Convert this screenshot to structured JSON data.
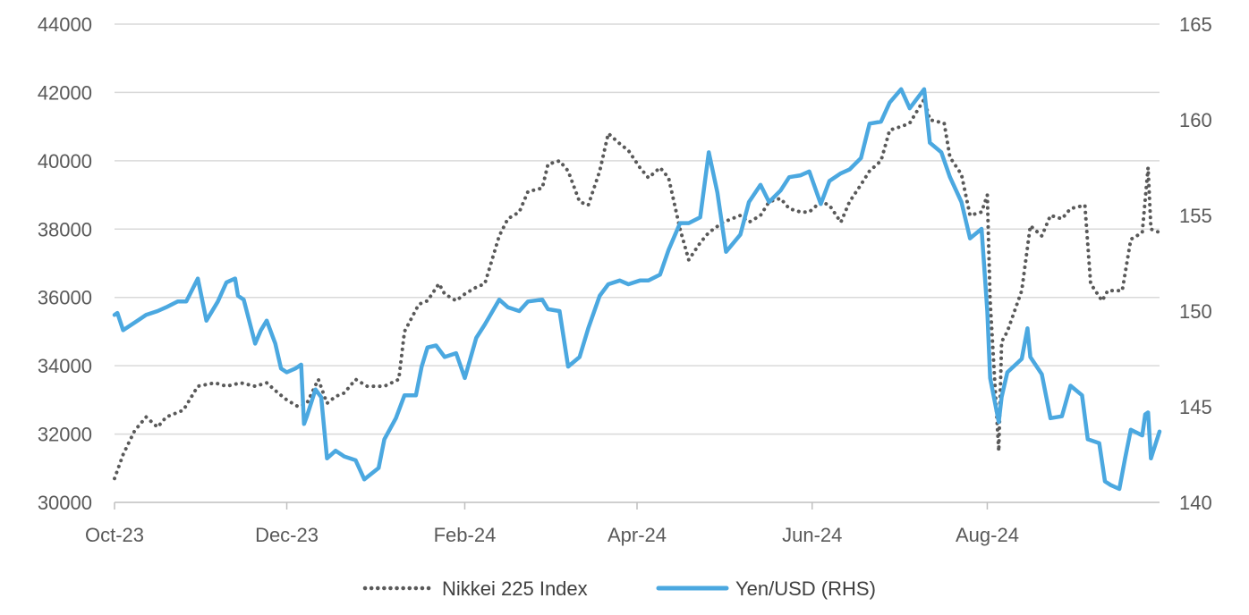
{
  "chart_data": {
    "type": "line",
    "title": "",
    "x_tick_labels": [
      "Oct-23",
      "Dec-23",
      "Feb-24",
      "Apr-24",
      "Jun-24",
      "Aug-24"
    ],
    "x_tick_dates": [
      "2023-10-02",
      "2023-12-01",
      "2024-02-01",
      "2024-04-01",
      "2024-06-01",
      "2024-08-01"
    ],
    "x_range": [
      "2023-10-02",
      "2024-09-30"
    ],
    "y_left": {
      "ticks": [
        30000,
        32000,
        34000,
        36000,
        38000,
        40000,
        42000,
        44000
      ],
      "range": [
        30000,
        44000
      ]
    },
    "y_right": {
      "ticks": [
        140,
        145,
        150,
        155,
        160,
        165
      ],
      "range": [
        140,
        165
      ]
    },
    "grid": true,
    "legend_position": "bottom",
    "series": [
      {
        "name": "Nikkei 225 Index",
        "axis": "left",
        "style": "dotted",
        "color": "#595959",
        "points": [
          [
            "2023-10-02",
            30700
          ],
          [
            "2023-10-05",
            31400
          ],
          [
            "2023-10-09",
            32100
          ],
          [
            "2023-10-13",
            32500
          ],
          [
            "2023-10-17",
            32200
          ],
          [
            "2023-10-20",
            32500
          ],
          [
            "2023-10-26",
            32700
          ],
          [
            "2023-10-31",
            33400
          ],
          [
            "2023-11-06",
            33500
          ],
          [
            "2023-11-10",
            33400
          ],
          [
            "2023-11-15",
            33500
          ],
          [
            "2023-11-20",
            33400
          ],
          [
            "2023-11-24",
            33500
          ],
          [
            "2023-11-28",
            33200
          ],
          [
            "2023-12-01",
            33000
          ],
          [
            "2023-12-05",
            32800
          ],
          [
            "2023-12-08",
            32900
          ],
          [
            "2023-12-12",
            33600
          ],
          [
            "2023-12-15",
            32900
          ],
          [
            "2023-12-18",
            33100
          ],
          [
            "2023-12-21",
            33200
          ],
          [
            "2023-12-25",
            33600
          ],
          [
            "2023-12-29",
            33400
          ],
          [
            "2024-01-04",
            33400
          ],
          [
            "2024-01-09",
            33600
          ],
          [
            "2024-01-11",
            35000
          ],
          [
            "2024-01-16",
            35800
          ],
          [
            "2024-01-19",
            35900
          ],
          [
            "2024-01-23",
            36400
          ],
          [
            "2024-01-25",
            36100
          ],
          [
            "2024-01-29",
            35900
          ],
          [
            "2024-02-01",
            36100
          ],
          [
            "2024-02-05",
            36300
          ],
          [
            "2024-02-08",
            36400
          ],
          [
            "2024-02-13",
            37800
          ],
          [
            "2024-02-16",
            38300
          ],
          [
            "2024-02-20",
            38500
          ],
          [
            "2024-02-23",
            39100
          ],
          [
            "2024-02-28",
            39200
          ],
          [
            "2024-03-01",
            39900
          ],
          [
            "2024-03-05",
            40000
          ],
          [
            "2024-03-08",
            39700
          ],
          [
            "2024-03-12",
            38800
          ],
          [
            "2024-03-15",
            38700
          ],
          [
            "2024-03-19",
            39700
          ],
          [
            "2024-03-22",
            40800
          ],
          [
            "2024-03-26",
            40500
          ],
          [
            "2024-03-29",
            40300
          ],
          [
            "2024-04-02",
            39800
          ],
          [
            "2024-04-05",
            39500
          ],
          [
            "2024-04-09",
            39800
          ],
          [
            "2024-04-12",
            39500
          ],
          [
            "2024-04-16",
            38000
          ],
          [
            "2024-04-19",
            37100
          ],
          [
            "2024-04-23",
            37600
          ],
          [
            "2024-04-26",
            37900
          ],
          [
            "2024-05-01",
            38200
          ],
          [
            "2024-05-07",
            38400
          ],
          [
            "2024-05-10",
            38200
          ],
          [
            "2024-05-14",
            38400
          ],
          [
            "2024-05-17",
            38800
          ],
          [
            "2024-05-21",
            38900
          ],
          [
            "2024-05-24",
            38600
          ],
          [
            "2024-05-28",
            38500
          ],
          [
            "2024-05-31",
            38500
          ],
          [
            "2024-06-04",
            38800
          ],
          [
            "2024-06-07",
            38700
          ],
          [
            "2024-06-11",
            38200
          ],
          [
            "2024-06-14",
            38800
          ],
          [
            "2024-06-18",
            39300
          ],
          [
            "2024-06-21",
            39700
          ],
          [
            "2024-06-25",
            40000
          ],
          [
            "2024-06-28",
            40900
          ],
          [
            "2024-07-02",
            41000
          ],
          [
            "2024-07-05",
            41100
          ],
          [
            "2024-07-10",
            41800
          ],
          [
            "2024-07-12",
            41200
          ],
          [
            "2024-07-17",
            41100
          ],
          [
            "2024-07-19",
            40100
          ],
          [
            "2024-07-23",
            39600
          ],
          [
            "2024-07-26",
            38400
          ],
          [
            "2024-07-30",
            38500
          ],
          [
            "2024-08-01",
            39000
          ],
          [
            "2024-08-02",
            35900
          ],
          [
            "2024-08-05",
            31500
          ],
          [
            "2024-08-06",
            34700
          ],
          [
            "2024-08-08",
            35000
          ],
          [
            "2024-08-13",
            36200
          ],
          [
            "2024-08-16",
            38100
          ],
          [
            "2024-08-20",
            37800
          ],
          [
            "2024-08-23",
            38400
          ],
          [
            "2024-08-27",
            38300
          ],
          [
            "2024-08-30",
            38600
          ],
          [
            "2024-09-04",
            38700
          ],
          [
            "2024-09-06",
            36400
          ],
          [
            "2024-09-10",
            35900
          ],
          [
            "2024-09-12",
            36200
          ],
          [
            "2024-09-17",
            36200
          ],
          [
            "2024-09-20",
            37700
          ],
          [
            "2024-09-24",
            37900
          ],
          [
            "2024-09-26",
            39800
          ],
          [
            "2024-09-27",
            38000
          ],
          [
            "2024-09-30",
            37900
          ]
        ]
      },
      {
        "name": "Yen/USD (RHS)",
        "axis": "right",
        "style": "solid",
        "color": "#4BA8E0",
        "points": [
          [
            "2023-10-02",
            149.8
          ],
          [
            "2023-10-03",
            149.9
          ],
          [
            "2023-10-05",
            149.0
          ],
          [
            "2023-10-10",
            149.5
          ],
          [
            "2023-10-13",
            149.8
          ],
          [
            "2023-10-17",
            150.0
          ],
          [
            "2023-10-20",
            150.2
          ],
          [
            "2023-10-24",
            150.5
          ],
          [
            "2023-10-27",
            150.5
          ],
          [
            "2023-10-31",
            151.7
          ],
          [
            "2023-11-03",
            149.5
          ],
          [
            "2023-11-07",
            150.5
          ],
          [
            "2023-11-10",
            151.5
          ],
          [
            "2023-11-13",
            151.7
          ],
          [
            "2023-11-14",
            150.8
          ],
          [
            "2023-11-16",
            150.6
          ],
          [
            "2023-11-20",
            148.3
          ],
          [
            "2023-11-22",
            149.0
          ],
          [
            "2023-11-24",
            149.5
          ],
          [
            "2023-11-27",
            148.3
          ],
          [
            "2023-11-29",
            147.0
          ],
          [
            "2023-12-01",
            146.8
          ],
          [
            "2023-12-04",
            147.0
          ],
          [
            "2023-12-06",
            147.2
          ],
          [
            "2023-12-07",
            144.1
          ],
          [
            "2023-12-08",
            144.5
          ],
          [
            "2023-12-11",
            145.9
          ],
          [
            "2023-12-13",
            145.5
          ],
          [
            "2023-12-15",
            142.3
          ],
          [
            "2023-12-18",
            142.7
          ],
          [
            "2023-12-21",
            142.4
          ],
          [
            "2023-12-25",
            142.2
          ],
          [
            "2023-12-28",
            141.2
          ],
          [
            "2024-01-02",
            141.8
          ],
          [
            "2024-01-04",
            143.3
          ],
          [
            "2024-01-08",
            144.4
          ],
          [
            "2024-01-11",
            145.6
          ],
          [
            "2024-01-15",
            145.6
          ],
          [
            "2024-01-17",
            147.1
          ],
          [
            "2024-01-19",
            148.1
          ],
          [
            "2024-01-22",
            148.2
          ],
          [
            "2024-01-25",
            147.6
          ],
          [
            "2024-01-29",
            147.8
          ],
          [
            "2024-02-01",
            146.5
          ],
          [
            "2024-02-05",
            148.6
          ],
          [
            "2024-02-08",
            149.3
          ],
          [
            "2024-02-13",
            150.6
          ],
          [
            "2024-02-16",
            150.2
          ],
          [
            "2024-02-20",
            150.0
          ],
          [
            "2024-02-23",
            150.5
          ],
          [
            "2024-02-28",
            150.6
          ],
          [
            "2024-03-01",
            150.1
          ],
          [
            "2024-03-05",
            150.0
          ],
          [
            "2024-03-08",
            147.1
          ],
          [
            "2024-03-12",
            147.6
          ],
          [
            "2024-03-15",
            149.1
          ],
          [
            "2024-03-19",
            150.8
          ],
          [
            "2024-03-22",
            151.4
          ],
          [
            "2024-03-26",
            151.6
          ],
          [
            "2024-03-29",
            151.4
          ],
          [
            "2024-04-02",
            151.6
          ],
          [
            "2024-04-05",
            151.6
          ],
          [
            "2024-04-09",
            151.9
          ],
          [
            "2024-04-12",
            153.2
          ],
          [
            "2024-04-16",
            154.6
          ],
          [
            "2024-04-19",
            154.6
          ],
          [
            "2024-04-23",
            154.9
          ],
          [
            "2024-04-26",
            158.3
          ],
          [
            "2024-04-29",
            156.2
          ],
          [
            "2024-05-02",
            153.1
          ],
          [
            "2024-05-07",
            154.0
          ],
          [
            "2024-05-10",
            155.7
          ],
          [
            "2024-05-14",
            156.6
          ],
          [
            "2024-05-17",
            155.7
          ],
          [
            "2024-05-21",
            156.3
          ],
          [
            "2024-05-24",
            157.0
          ],
          [
            "2024-05-28",
            157.1
          ],
          [
            "2024-05-31",
            157.3
          ],
          [
            "2024-06-04",
            155.6
          ],
          [
            "2024-06-07",
            156.8
          ],
          [
            "2024-06-11",
            157.2
          ],
          [
            "2024-06-14",
            157.4
          ],
          [
            "2024-06-18",
            158.0
          ],
          [
            "2024-06-21",
            159.8
          ],
          [
            "2024-06-25",
            159.9
          ],
          [
            "2024-06-28",
            160.9
          ],
          [
            "2024-07-02",
            161.6
          ],
          [
            "2024-07-05",
            160.6
          ],
          [
            "2024-07-10",
            161.6
          ],
          [
            "2024-07-12",
            158.8
          ],
          [
            "2024-07-16",
            158.3
          ],
          [
            "2024-07-19",
            157.0
          ],
          [
            "2024-07-23",
            155.7
          ],
          [
            "2024-07-26",
            153.8
          ],
          [
            "2024-07-30",
            154.3
          ],
          [
            "2024-08-01",
            150.0
          ],
          [
            "2024-08-02",
            146.5
          ],
          [
            "2024-08-05",
            144.2
          ],
          [
            "2024-08-06",
            145.5
          ],
          [
            "2024-08-08",
            146.8
          ],
          [
            "2024-08-13",
            147.5
          ],
          [
            "2024-08-15",
            149.1
          ],
          [
            "2024-08-16",
            147.6
          ],
          [
            "2024-08-20",
            146.7
          ],
          [
            "2024-08-23",
            144.4
          ],
          [
            "2024-08-27",
            144.5
          ],
          [
            "2024-08-30",
            146.1
          ],
          [
            "2024-09-03",
            145.6
          ],
          [
            "2024-09-05",
            143.3
          ],
          [
            "2024-09-09",
            143.1
          ],
          [
            "2024-09-11",
            141.1
          ],
          [
            "2024-09-13",
            140.9
          ],
          [
            "2024-09-16",
            140.7
          ],
          [
            "2024-09-18",
            142.3
          ],
          [
            "2024-09-20",
            143.8
          ],
          [
            "2024-09-24",
            143.5
          ],
          [
            "2024-09-25",
            144.6
          ],
          [
            "2024-09-26",
            144.7
          ],
          [
            "2024-09-27",
            142.3
          ],
          [
            "2024-09-30",
            143.7
          ]
        ]
      }
    ],
    "legend": [
      "Nikkei 225 Index",
      "Yen/USD (RHS)"
    ]
  }
}
